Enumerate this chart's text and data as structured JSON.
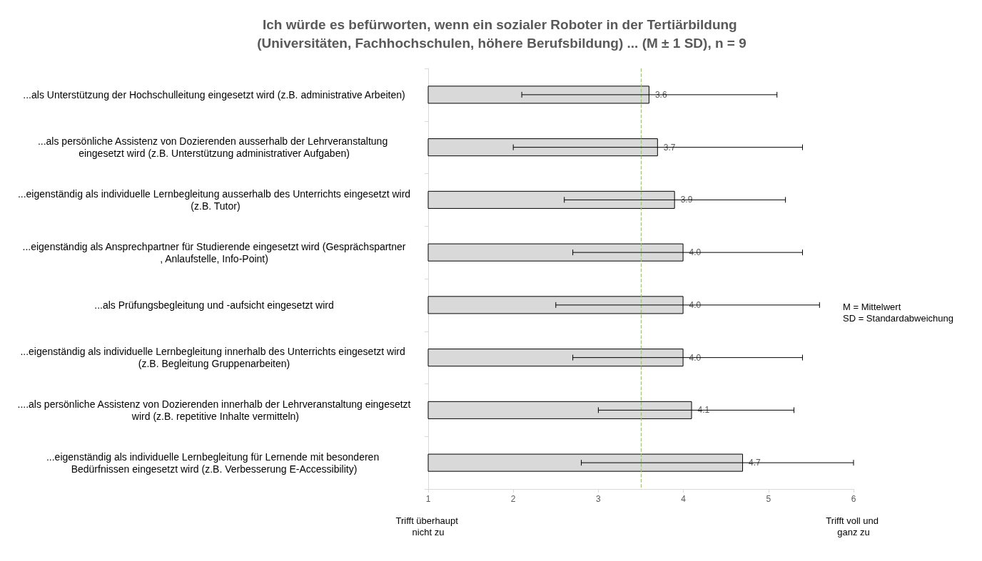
{
  "chart_data": {
    "type": "bar",
    "orientation": "horizontal",
    "title": "Ich würde es befürworten, wenn ein sozialer Roboter in der Tertiärbildung (Universitäten, Fachhochschulen, höhere Berufsbildung) ... (M ± 1 SD), n = 9",
    "categories": [
      "...als Unterstützung der Hochschulleitung eingesetzt wird (z.B. administrative Arbeiten)",
      "...als persönliche Assistenz von Dozierenden ausserhalb der Lehrveranstaltung eingesetzt wird (z.B. Unterstützung administrativer Aufgaben)",
      "...eigenständig als individuelle Lernbegleitung ausserhalb des Unterrichts eingesetzt wird (z.B. Tutor)",
      "...eigenständig als Ansprechpartner für Studierende eingesetzt wird (Gesprächspartner, Anlaufstelle, Info-Point)",
      "...als Prüfungsbegleitung und -aufsicht eingesetzt wird",
      "...eigenständig als individuelle Lernbegleitung innerhalb des Unterrichts eingesetzt wird (z.B. Begleitung Gruppenarbeiten)",
      "....als persönliche Assistenz von Dozierenden innerhalb der Lehrveranstaltung eingesetzt wird (z.B. repetitive Inhalte vermitteln)",
      "...eigenständig als individuelle Lernbegleitung für Lernende mit besonderen Bedürfnissen eingesetzt wird (z.B. Verbesserung E-Accessibility)"
    ],
    "values": [
      3.6,
      3.7,
      3.9,
      4.0,
      4.0,
      4.0,
      4.1,
      4.7
    ],
    "value_labels": [
      "3.6",
      "3.7",
      "3.9",
      "4.0",
      "4.0",
      "4.0",
      "4.1",
      "4.7"
    ],
    "errors": [
      [
        2.1,
        5.1
      ],
      [
        2.0,
        5.4
      ],
      [
        2.6,
        5.2
      ],
      [
        2.7,
        5.4
      ],
      [
        2.5,
        5.6
      ],
      [
        2.7,
        5.4
      ],
      [
        3.0,
        5.3
      ],
      [
        2.8,
        6.0
      ]
    ],
    "color": "#d9d9d9",
    "xlim": [
      1,
      6
    ],
    "xticks": [
      1,
      2,
      3,
      4,
      5,
      6
    ],
    "grid": false,
    "ref_lines": [
      {
        "axis": "x",
        "value": 3.5,
        "color": "#92d050",
        "line_style": "dashed"
      }
    ],
    "annotations": [
      "M = Mittelwert",
      "SD = Standardabweichung",
      "Trifft überhaupt nicht zu",
      "Trifft voll und ganz zu"
    ]
  }
}
